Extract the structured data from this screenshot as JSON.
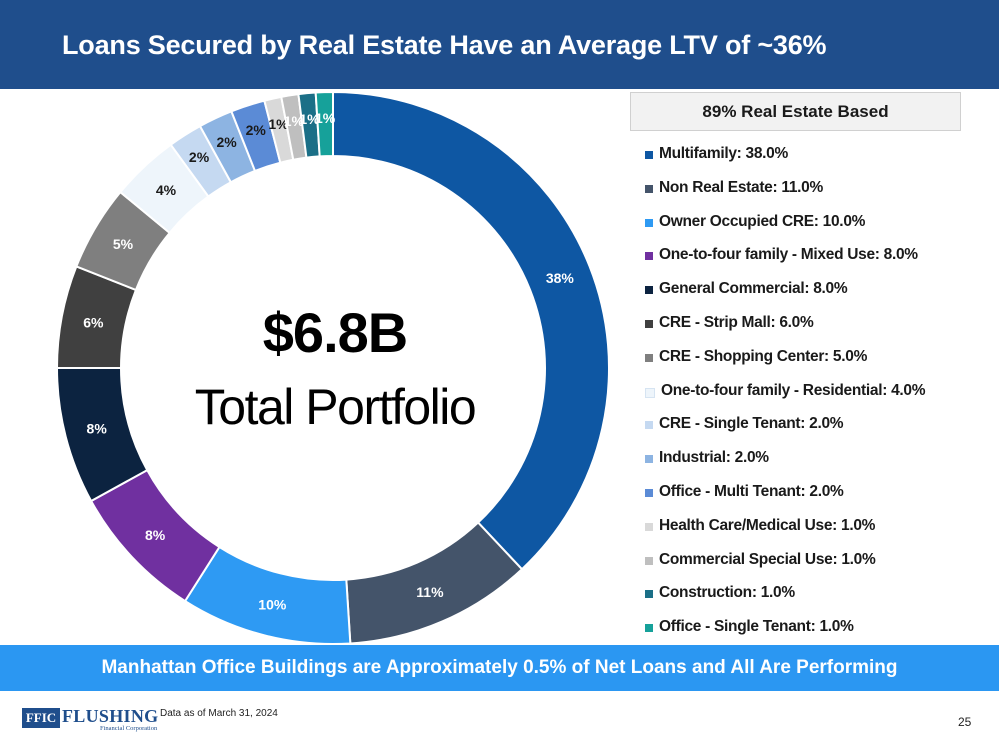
{
  "header": {
    "title": "Loans Secured by Real Estate Have an Average LTV of ~36%"
  },
  "legend_header": "89% Real Estate Based",
  "center": {
    "value": "$6.8B",
    "label": "Total Portfolio"
  },
  "banner": "Manhattan Office Buildings are Approximately 0.5% of Net Loans and All Are Performing",
  "footer": {
    "logo_box": "FFIC",
    "logo_name": "FLUSHING",
    "logo_sub": "Financial Corporation",
    "as_of": "Data as of March 31, 2024",
    "page": "25"
  },
  "chart_data": {
    "type": "pie",
    "donut": true,
    "title": "$6.8B Total Portfolio",
    "slices": [
      {
        "name": "Multifamily",
        "value": 38.0,
        "label": "38%",
        "legend": "Multifamily: 38.0%",
        "color": "#0e57a3",
        "label_color": "#ffffff"
      },
      {
        "name": "Non Real Estate",
        "value": 11.0,
        "label": "11%",
        "legend": "Non Real Estate: 11.0%",
        "color": "#44546a",
        "label_color": "#ffffff"
      },
      {
        "name": "Owner Occupied CRE",
        "value": 10.0,
        "label": "10%",
        "legend": "Owner Occupied CRE: 10.0%",
        "color": "#2e9af3",
        "label_color": "#ffffff"
      },
      {
        "name": "One-to-four family - Mixed Use",
        "value": 8.0,
        "label": "8%",
        "legend": "One-to-four family - Mixed Use: 8.0%",
        "color": "#7030a0",
        "label_color": "#ffffff"
      },
      {
        "name": "General Commercial",
        "value": 8.0,
        "label": "8%",
        "legend": "General Commercial: 8.0%",
        "color": "#0c2340",
        "label_color": "#ffffff"
      },
      {
        "name": "CRE - Strip Mall",
        "value": 6.0,
        "label": "6%",
        "legend": "CRE - Strip Mall: 6.0%",
        "color": "#404040",
        "label_color": "#ffffff"
      },
      {
        "name": "CRE - Shopping Center",
        "value": 5.0,
        "label": "5%",
        "legend": "CRE - Shopping Center: 5.0%",
        "color": "#7f7f7f",
        "label_color": "#ffffff"
      },
      {
        "name": "One-to-four family - Residential",
        "value": 4.0,
        "label": "4%",
        "legend": "One-to-four family - Residential: 4.0%",
        "color": "#eef5fb",
        "label_color": "#1a1a1a"
      },
      {
        "name": "CRE - Single Tenant",
        "value": 2.0,
        "label": "2%",
        "legend": "CRE - Single Tenant: 2.0%",
        "color": "#c5d9f1",
        "label_color": "#1a1a1a"
      },
      {
        "name": "Industrial",
        "value": 2.0,
        "label": "2%",
        "legend": "Industrial: 2.0%",
        "color": "#8db4e2",
        "label_color": "#1a1a1a"
      },
      {
        "name": "Office - Multi Tenant",
        "value": 2.0,
        "label": "2%",
        "legend": "Office - Multi Tenant: 2.0%",
        "color": "#5b8bd6",
        "label_color": "#1a1a1a"
      },
      {
        "name": "Health Care/Medical Use",
        "value": 1.0,
        "label": "1%",
        "legend": "Health Care/Medical Use: 1.0%",
        "color": "#d9d9d9",
        "label_color": "#1a1a1a"
      },
      {
        "name": "Commercial Special Use",
        "value": 1.0,
        "label": "1%",
        "legend": "Commercial Special Use: 1.0%",
        "color": "#bfbfbf",
        "label_color": "#ffffff"
      },
      {
        "name": "Construction",
        "value": 1.0,
        "label": "1%",
        "legend": "Construction: 1.0%",
        "color": "#1b6f87",
        "label_color": "#ffffff"
      },
      {
        "name": "Office - Single Tenant",
        "value": 1.0,
        "label": "1%",
        "legend": "Office - Single Tenant: 1.0%",
        "color": "#16a19a",
        "label_color": "#ffffff"
      }
    ]
  }
}
